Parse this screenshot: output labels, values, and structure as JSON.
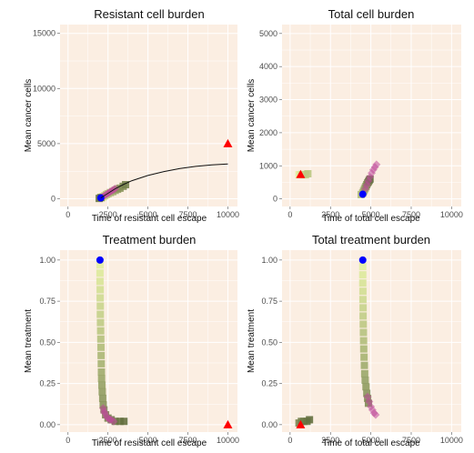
{
  "chart_data": [
    {
      "type": "scatter",
      "title": "Resistant cell burden",
      "xlabel": "Time of resistant cell escape",
      "ylabel": "Mean cancer cells",
      "xlim": [
        -500,
        10600
      ],
      "ylim": [
        -700,
        15800
      ],
      "xticks": [
        0,
        2500,
        5000,
        7500,
        10000
      ],
      "yticks": [
        0,
        5000,
        10000,
        15000
      ],
      "grid": true,
      "series": [
        {
          "marker": "square",
          "color": "gradient green",
          "points": [
            [
              2100,
              80
            ],
            [
              2150,
              150
            ],
            [
              2200,
              200
            ],
            [
              2300,
              280
            ],
            [
              2400,
              380
            ],
            [
              2500,
              460
            ],
            [
              2650,
              560
            ],
            [
              2800,
              650
            ],
            [
              2950,
              760
            ],
            [
              3100,
              860
            ],
            [
              3250,
              960
            ],
            [
              3450,
              1130
            ],
            [
              3600,
              1280
            ],
            [
              1950,
              30
            ],
            [
              2050,
              110
            ]
          ]
        },
        {
          "marker": "diamond",
          "color": "#c04b9a",
          "points": [
            [
              2050,
              90
            ],
            [
              2150,
              170
            ],
            [
              2250,
              250
            ],
            [
              2350,
              340
            ],
            [
              2450,
              440
            ],
            [
              2550,
              540
            ],
            [
              2650,
              640
            ],
            [
              2750,
              730
            ],
            [
              2850,
              830
            ],
            [
              2950,
              920
            ]
          ]
        },
        {
          "marker": "circle",
          "color": "#0000ff",
          "points": [
            [
              2050,
              80
            ]
          ]
        },
        {
          "marker": "triangle",
          "color": "#ff0000",
          "points": [
            [
              10000,
              5000
            ]
          ]
        },
        {
          "line": true,
          "color": "#111111",
          "points": [
            [
              2050,
              80
            ],
            [
              2500,
              500
            ],
            [
              3000,
              950
            ],
            [
              3500,
              1320
            ],
            [
              4000,
              1640
            ],
            [
              5000,
              2110
            ],
            [
              6000,
              2470
            ],
            [
              7000,
              2740
            ],
            [
              8000,
              2940
            ],
            [
              9000,
              3080
            ],
            [
              10000,
              3160
            ]
          ]
        }
      ]
    },
    {
      "type": "scatter",
      "title": "Total cell burden",
      "xlabel": "Time of total cell escape",
      "ylabel": "Mean cancer cells",
      "xlim": [
        -500,
        10600
      ],
      "ylim": [
        -230,
        5270
      ],
      "xticks": [
        0,
        2500,
        5000,
        7500,
        10000
      ],
      "yticks": [
        0,
        1000,
        2000,
        3000,
        4000,
        5000
      ],
      "grid": true,
      "series": [
        {
          "marker": "square",
          "color": "gradient green",
          "points": [
            [
              550,
              730
            ],
            [
              650,
              730
            ],
            [
              750,
              740
            ],
            [
              850,
              730
            ],
            [
              950,
              730
            ],
            [
              1100,
              760
            ],
            [
              4400,
              130
            ],
            [
              4500,
              180
            ],
            [
              4550,
              230
            ],
            [
              4600,
              280
            ],
            [
              4650,
              330
            ],
            [
              4700,
              380
            ],
            [
              4750,
              430
            ],
            [
              4800,
              480
            ],
            [
              4850,
              520
            ],
            [
              4900,
              560
            ],
            [
              4950,
              600
            ]
          ]
        },
        {
          "marker": "diamond",
          "color": "#c04b9a",
          "points": [
            [
              4650,
              300
            ],
            [
              4750,
              420
            ],
            [
              4850,
              540
            ],
            [
              4950,
              660
            ],
            [
              5050,
              780
            ],
            [
              5150,
              880
            ],
            [
              5250,
              960
            ],
            [
              5350,
              1040
            ]
          ]
        },
        {
          "marker": "circle",
          "color": "#0000ff",
          "points": [
            [
              4500,
              140
            ]
          ]
        },
        {
          "marker": "triangle",
          "color": "#ff0000",
          "points": [
            [
              650,
              740
            ]
          ]
        }
      ]
    },
    {
      "type": "scatter",
      "title": "Treatment burden",
      "xlabel": "Time of resistant cell escape",
      "ylabel": "Mean treatment",
      "xlim": [
        -500,
        10600
      ],
      "ylim": [
        -0.045,
        1.06
      ],
      "xticks": [
        0,
        2500,
        5000,
        7500,
        10000
      ],
      "yticks": [
        0.0,
        0.25,
        0.5,
        0.75,
        1.0
      ],
      "yticklabels": [
        "0.00",
        "0.25",
        "0.50",
        "0.75",
        "1.00"
      ],
      "grid": true,
      "series": [
        {
          "marker": "square",
          "color": "gradient green",
          "points": [
            [
              2000,
              0.97
            ],
            [
              2000,
              0.92
            ],
            [
              2000,
              0.87
            ],
            [
              2010,
              0.82
            ],
            [
              2010,
              0.77
            ],
            [
              2020,
              0.72
            ],
            [
              2020,
              0.67
            ],
            [
              2030,
              0.62
            ],
            [
              2040,
              0.57
            ],
            [
              2050,
              0.52
            ],
            [
              2060,
              0.47
            ],
            [
              2070,
              0.42
            ],
            [
              2080,
              0.37
            ],
            [
              2090,
              0.32
            ],
            [
              2100,
              0.28
            ],
            [
              2120,
              0.24
            ],
            [
              2140,
              0.2
            ],
            [
              2170,
              0.16
            ],
            [
              2200,
              0.12
            ],
            [
              2250,
              0.09
            ],
            [
              2350,
              0.06
            ],
            [
              2500,
              0.04
            ],
            [
              2700,
              0.03
            ],
            [
              2950,
              0.02
            ],
            [
              3250,
              0.02
            ],
            [
              3500,
              0.02
            ]
          ]
        },
        {
          "marker": "diamond",
          "color": "#c04b9a",
          "points": [
            [
              2200,
              0.1
            ],
            [
              2250,
              0.08
            ],
            [
              2300,
              0.07
            ],
            [
              2400,
              0.05
            ],
            [
              2500,
              0.04
            ],
            [
              2600,
              0.03
            ],
            [
              2700,
              0.03
            ],
            [
              2850,
              0.02
            ]
          ]
        },
        {
          "marker": "circle",
          "color": "#0000ff",
          "points": [
            [
              2000,
              1.0
            ]
          ]
        },
        {
          "marker": "triangle",
          "color": "#ff0000",
          "points": [
            [
              10000,
              0.0
            ]
          ]
        }
      ]
    },
    {
      "type": "scatter",
      "title": "Total treatment burden",
      "xlabel": "Time of total cell escape",
      "ylabel": "Mean treatment",
      "xlim": [
        -500,
        10600
      ],
      "ylim": [
        -0.045,
        1.06
      ],
      "xticks": [
        0,
        2500,
        5000,
        7500,
        10000
      ],
      "yticks": [
        0.0,
        0.25,
        0.5,
        0.75,
        1.0
      ],
      "yticklabels": [
        "0.00",
        "0.25",
        "0.50",
        "0.75",
        "1.00"
      ],
      "grid": true,
      "series": [
        {
          "marker": "square",
          "color": "gradient green",
          "points": [
            [
              4500,
              0.96
            ],
            [
              4500,
              0.91
            ],
            [
              4500,
              0.86
            ],
            [
              4510,
              0.81
            ],
            [
              4510,
              0.76
            ],
            [
              4520,
              0.71
            ],
            [
              4520,
              0.66
            ],
            [
              4530,
              0.61
            ],
            [
              4540,
              0.56
            ],
            [
              4550,
              0.51
            ],
            [
              4560,
              0.46
            ],
            [
              4580,
              0.41
            ],
            [
              4600,
              0.36
            ],
            [
              4620,
              0.31
            ],
            [
              4650,
              0.27
            ],
            [
              4700,
              0.23
            ],
            [
              4750,
              0.19
            ],
            [
              4800,
              0.16
            ],
            [
              4850,
              0.13
            ],
            [
              550,
              0.01
            ],
            [
              700,
              0.02
            ],
            [
              850,
              0.02
            ],
            [
              1050,
              0.02
            ],
            [
              1200,
              0.03
            ]
          ]
        },
        {
          "marker": "diamond",
          "color": "#c04b9a",
          "points": [
            [
              4800,
              0.17
            ],
            [
              4900,
              0.14
            ],
            [
              5000,
              0.11
            ],
            [
              5100,
              0.09
            ],
            [
              5200,
              0.07
            ],
            [
              5300,
              0.06
            ]
          ]
        },
        {
          "marker": "circle",
          "color": "#0000ff",
          "points": [
            [
              4500,
              1.0
            ]
          ]
        },
        {
          "marker": "triangle",
          "color": "#ff0000",
          "points": [
            [
              650,
              0.0
            ]
          ]
        }
      ]
    }
  ]
}
